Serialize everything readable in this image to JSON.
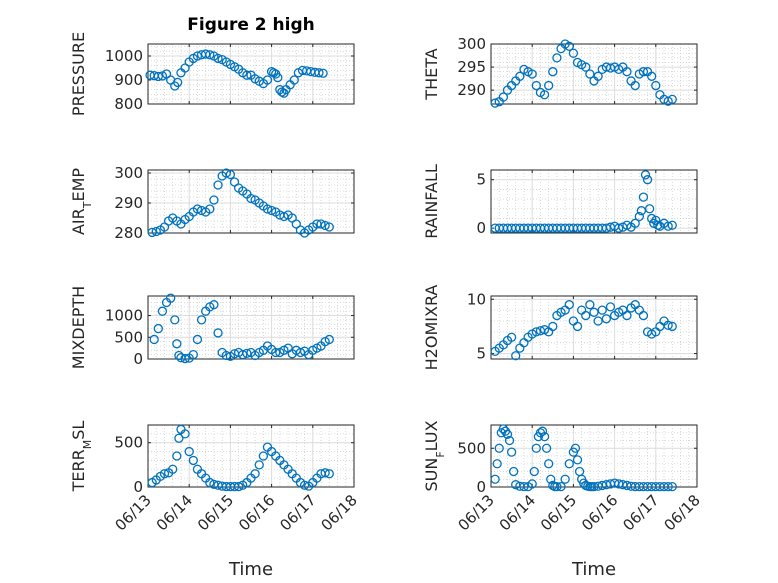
{
  "figure": {
    "title": "Figure 2 high",
    "xlabel": "Time",
    "x_tick_labels": [
      "06/13",
      "06/14",
      "06/15",
      "06/16",
      "06/17",
      "06/18"
    ],
    "marker_color": "#0072BD",
    "marker": "open-circle"
  },
  "chart_data": [
    {
      "type": "scatter",
      "id": "pressure",
      "ylabel_parts": [
        {
          "text": "PRESSURE",
          "sub": false
        }
      ],
      "ylim": [
        800,
        1050
      ],
      "yticks": [
        800,
        900,
        1000
      ],
      "xlim": [
        0,
        5
      ],
      "series": [
        {
          "x": [
            0.05,
            0.15,
            0.25,
            0.35,
            0.45,
            0.55,
            0.65,
            0.72,
            0.8,
            0.9,
            1.0,
            1.1,
            1.2,
            1.3,
            1.4,
            1.5,
            1.6,
            1.7,
            1.8,
            1.9,
            2.0,
            2.1,
            2.2,
            2.3,
            2.4,
            2.5,
            2.6,
            2.7,
            2.8,
            2.9,
            3.0,
            3.05,
            3.1,
            3.15,
            3.2,
            3.25,
            3.3,
            3.35,
            3.45,
            3.55,
            3.65,
            3.75,
            3.85,
            3.95,
            4.05,
            4.15,
            4.25
          ],
          "y": [
            920,
            918,
            915,
            917,
            925,
            900,
            875,
            890,
            930,
            950,
            975,
            990,
            1000,
            1005,
            1008,
            1005,
            1000,
            990,
            985,
            975,
            965,
            955,
            945,
            930,
            920,
            920,
            905,
            895,
            885,
            900,
            935,
            930,
            925,
            910,
            860,
            850,
            845,
            860,
            880,
            900,
            930,
            940,
            938,
            935,
            932,
            930,
            928
          ]
        }
      ]
    },
    {
      "type": "scatter",
      "id": "theta",
      "ylabel_parts": [
        {
          "text": "THETA",
          "sub": false
        }
      ],
      "ylim": [
        287,
        300
      ],
      "yticks": [
        290,
        295,
        300
      ],
      "xlim": [
        0,
        5
      ],
      "series": [
        {
          "x": [
            0.1,
            0.2,
            0.3,
            0.4,
            0.5,
            0.6,
            0.7,
            0.8,
            0.9,
            1.0,
            1.1,
            1.2,
            1.3,
            1.4,
            1.5,
            1.6,
            1.7,
            1.8,
            1.9,
            2.0,
            2.1,
            2.2,
            2.3,
            2.4,
            2.5,
            2.6,
            2.7,
            2.8,
            2.9,
            3.0,
            3.1,
            3.2,
            3.3,
            3.4,
            3.5,
            3.6,
            3.7,
            3.8,
            3.9,
            4.0,
            4.1,
            4.2,
            4.3,
            4.4
          ],
          "y": [
            287.2,
            287.5,
            288.5,
            290,
            291,
            292,
            293,
            294.5,
            294,
            293.5,
            291,
            289.5,
            289,
            291,
            294,
            297,
            299,
            300,
            299.5,
            298,
            296,
            295.5,
            295,
            293.5,
            292,
            293,
            294.5,
            295,
            294.8,
            295,
            294.5,
            295,
            294,
            292,
            291,
            293.5,
            294,
            294,
            293,
            291,
            289,
            288,
            287.6,
            288
          ]
        }
      ]
    },
    {
      "type": "scatter",
      "id": "air_temp",
      "ylabel_parts": [
        {
          "text": "AIR",
          "sub": false
        },
        {
          "text": "T",
          "sub": true
        },
        {
          "text": "EMP",
          "sub": false
        }
      ],
      "ylim": [
        280,
        301
      ],
      "yticks": [
        280,
        290,
        300
      ],
      "xlim": [
        0,
        5
      ],
      "series": [
        {
          "x": [
            0.1,
            0.2,
            0.3,
            0.4,
            0.5,
            0.6,
            0.7,
            0.8,
            0.9,
            1.0,
            1.1,
            1.2,
            1.3,
            1.4,
            1.5,
            1.6,
            1.7,
            1.8,
            1.9,
            2.0,
            2.1,
            2.2,
            2.3,
            2.4,
            2.5,
            2.6,
            2.7,
            2.8,
            2.9,
            3.0,
            3.1,
            3.2,
            3.3,
            3.4,
            3.5,
            3.6,
            3.7,
            3.8,
            3.9,
            4.0,
            4.1,
            4.2,
            4.3,
            4.4
          ],
          "y": [
            280.2,
            280.5,
            281,
            282,
            284,
            285,
            284,
            283,
            284.5,
            285.5,
            287,
            288,
            287.5,
            287,
            288,
            291,
            296,
            299,
            300,
            299.5,
            297,
            295,
            294,
            293,
            291.5,
            291,
            290,
            289,
            288,
            287.5,
            287,
            286,
            285.5,
            286,
            285,
            283,
            281,
            280,
            281,
            282,
            283,
            283,
            282.5,
            282
          ]
        }
      ]
    },
    {
      "type": "scatter",
      "id": "rainfall",
      "ylabel_parts": [
        {
          "text": "RAINFALL",
          "sub": false
        }
      ],
      "ylim": [
        -0.5,
        6
      ],
      "yticks": [
        0,
        5
      ],
      "xlim": [
        0,
        5
      ],
      "series": [
        {
          "x": [
            0.1,
            0.2,
            0.3,
            0.4,
            0.5,
            0.6,
            0.7,
            0.8,
            0.9,
            1.0,
            1.1,
            1.2,
            1.3,
            1.4,
            1.5,
            1.6,
            1.7,
            1.8,
            1.9,
            2.0,
            2.1,
            2.2,
            2.3,
            2.4,
            2.5,
            2.6,
            2.7,
            2.8,
            2.9,
            3.0,
            3.1,
            3.2,
            3.3,
            3.4,
            3.5,
            3.6,
            3.65,
            3.7,
            3.75,
            3.8,
            3.85,
            3.9,
            3.95,
            4.0,
            4.05,
            4.1,
            4.2,
            4.3,
            4.4
          ],
          "y": [
            0,
            0,
            0,
            0,
            0,
            0,
            0,
            0,
            0,
            0,
            0,
            0,
            0,
            0,
            0,
            0,
            0,
            0,
            0,
            0,
            0,
            0,
            0,
            0,
            0,
            0,
            0,
            0,
            0.1,
            0.2,
            0,
            0.1,
            0.3,
            0.1,
            0.5,
            1.2,
            1.8,
            3.2,
            5.5,
            5,
            2,
            1,
            0.5,
            0.8,
            0.3,
            0.2,
            0.5,
            0.2,
            0.3
          ]
        }
      ]
    },
    {
      "type": "scatter",
      "id": "mixdepth",
      "ylabel_parts": [
        {
          "text": "MIXDEPTH",
          "sub": false
        }
      ],
      "ylim": [
        0,
        1450
      ],
      "yticks": [
        0,
        500,
        1000
      ],
      "xlim": [
        0,
        5
      ],
      "series": [
        {
          "x": [
            0.15,
            0.25,
            0.35,
            0.45,
            0.55,
            0.65,
            0.7,
            0.75,
            0.8,
            0.9,
            1.0,
            1.1,
            1.2,
            1.3,
            1.4,
            1.5,
            1.6,
            1.7,
            1.8,
            1.9,
            2.0,
            2.1,
            2.2,
            2.3,
            2.4,
            2.5,
            2.6,
            2.7,
            2.8,
            2.9,
            3.0,
            3.1,
            3.2,
            3.3,
            3.4,
            3.5,
            3.6,
            3.7,
            3.8,
            3.9,
            4.0,
            4.1,
            4.2,
            4.3,
            4.4
          ],
          "y": [
            450,
            700,
            1100,
            1300,
            1400,
            900,
            350,
            80,
            30,
            10,
            20,
            100,
            450,
            900,
            1100,
            1200,
            1250,
            600,
            150,
            80,
            60,
            120,
            150,
            100,
            130,
            150,
            80,
            150,
            200,
            300,
            220,
            150,
            150,
            200,
            250,
            120,
            200,
            150,
            180,
            100,
            200,
            250,
            300,
            400,
            450
          ]
        }
      ]
    },
    {
      "type": "scatter",
      "id": "h2omixra",
      "ylabel_parts": [
        {
          "text": "H2OMIXRA",
          "sub": false
        }
      ],
      "ylim": [
        4.5,
        10.3
      ],
      "yticks": [
        5,
        10
      ],
      "xlim": [
        0,
        5
      ],
      "series": [
        {
          "x": [
            0.1,
            0.2,
            0.3,
            0.4,
            0.5,
            0.6,
            0.7,
            0.8,
            0.9,
            1.0,
            1.1,
            1.2,
            1.3,
            1.4,
            1.5,
            1.6,
            1.7,
            1.8,
            1.9,
            2.0,
            2.1,
            2.2,
            2.3,
            2.4,
            2.5,
            2.6,
            2.7,
            2.8,
            2.9,
            3.0,
            3.1,
            3.2,
            3.3,
            3.4,
            3.5,
            3.6,
            3.7,
            3.8,
            3.9,
            4.0,
            4.1,
            4.2,
            4.3,
            4.4
          ],
          "y": [
            5.2,
            5.5,
            5.8,
            6.2,
            6.5,
            4.8,
            5.5,
            6,
            6.5,
            6.8,
            7,
            7.1,
            7.2,
            7,
            7.5,
            8.5,
            8.8,
            9,
            9.5,
            8,
            7.5,
            9,
            8.5,
            9.5,
            8.8,
            8,
            9,
            8.2,
            9.3,
            8.5,
            8.8,
            9,
            8.5,
            9.2,
            9.5,
            9,
            8.5,
            7,
            6.8,
            7,
            7.5,
            8,
            7.6,
            7.5
          ]
        }
      ]
    },
    {
      "type": "scatter",
      "id": "terr_msl",
      "ylabel_parts": [
        {
          "text": "TERR",
          "sub": false
        },
        {
          "text": "M",
          "sub": true
        },
        {
          "text": "SL",
          "sub": false
        }
      ],
      "ylim": [
        0,
        700
      ],
      "yticks": [
        0,
        500
      ],
      "xlim": [
        0,
        5
      ],
      "series": [
        {
          "x": [
            0.1,
            0.2,
            0.3,
            0.4,
            0.5,
            0.6,
            0.7,
            0.75,
            0.8,
            0.9,
            1.0,
            1.1,
            1.2,
            1.3,
            1.4,
            1.5,
            1.6,
            1.7,
            1.8,
            1.9,
            2.0,
            2.1,
            2.2,
            2.3,
            2.4,
            2.5,
            2.6,
            2.7,
            2.8,
            2.9,
            3.0,
            3.1,
            3.2,
            3.3,
            3.4,
            3.5,
            3.6,
            3.7,
            3.8,
            3.9,
            4.0,
            4.1,
            4.2,
            4.3,
            4.4
          ],
          "y": [
            50,
            80,
            120,
            150,
            160,
            200,
            350,
            550,
            650,
            600,
            400,
            300,
            200,
            150,
            100,
            50,
            30,
            20,
            10,
            5,
            5,
            5,
            5,
            20,
            50,
            100,
            150,
            250,
            350,
            450,
            400,
            350,
            300,
            250,
            200,
            150,
            100,
            50,
            20,
            10,
            50,
            100,
            150,
            160,
            150
          ]
        }
      ]
    },
    {
      "type": "scatter",
      "id": "sun_flux",
      "ylabel_parts": [
        {
          "text": "SUN",
          "sub": false
        },
        {
          "text": "F",
          "sub": true
        },
        {
          "text": "LUX",
          "sub": false
        }
      ],
      "ylim": [
        0,
        800
      ],
      "yticks": [
        0,
        500
      ],
      "xlim": [
        0,
        5
      ],
      "series": [
        {
          "x": [
            0.1,
            0.15,
            0.2,
            0.25,
            0.3,
            0.35,
            0.4,
            0.45,
            0.5,
            0.55,
            0.6,
            0.7,
            0.8,
            0.9,
            1.0,
            1.05,
            1.1,
            1.15,
            1.2,
            1.25,
            1.3,
            1.35,
            1.4,
            1.45,
            1.5,
            1.55,
            1.6,
            1.7,
            1.8,
            1.9,
            2.0,
            2.05,
            2.1,
            2.15,
            2.2,
            2.25,
            2.3,
            2.35,
            2.4,
            2.45,
            2.5,
            2.6,
            2.7,
            2.8,
            2.9,
            3.0,
            3.1,
            3.2,
            3.3,
            3.4,
            3.5,
            3.6,
            3.7,
            3.8,
            3.9,
            4.0,
            4.1,
            4.2,
            4.3,
            4.4
          ],
          "y": [
            100,
            300,
            500,
            700,
            750,
            720,
            680,
            600,
            450,
            200,
            30,
            10,
            5,
            5,
            40,
            200,
            500,
            650,
            700,
            720,
            650,
            500,
            300,
            100,
            20,
            5,
            5,
            5,
            100,
            300,
            450,
            500,
            350,
            200,
            100,
            50,
            20,
            10,
            5,
            5,
            5,
            10,
            20,
            30,
            40,
            50,
            40,
            30,
            20,
            10,
            5,
            5,
            5,
            5,
            5,
            5,
            5,
            5,
            5,
            5
          ]
        }
      ]
    }
  ]
}
